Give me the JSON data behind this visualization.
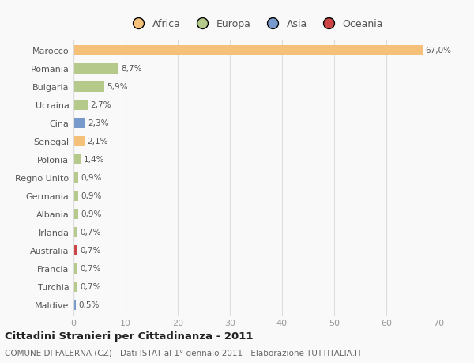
{
  "countries": [
    "Marocco",
    "Romania",
    "Bulgaria",
    "Ucraina",
    "Cina",
    "Senegal",
    "Polonia",
    "Regno Unito",
    "Germania",
    "Albania",
    "Irlanda",
    "Australia",
    "Francia",
    "Turchia",
    "Maldive"
  ],
  "values": [
    67.0,
    8.7,
    5.9,
    2.7,
    2.3,
    2.1,
    1.4,
    0.9,
    0.9,
    0.9,
    0.7,
    0.7,
    0.7,
    0.7,
    0.5
  ],
  "labels": [
    "67,0%",
    "8,7%",
    "5,9%",
    "2,7%",
    "2,3%",
    "2,1%",
    "1,4%",
    "0,9%",
    "0,9%",
    "0,9%",
    "0,7%",
    "0,7%",
    "0,7%",
    "0,7%",
    "0,5%"
  ],
  "continents": [
    "Africa",
    "Europa",
    "Europa",
    "Europa",
    "Asia",
    "Africa",
    "Europa",
    "Europa",
    "Europa",
    "Europa",
    "Europa",
    "Oceania",
    "Europa",
    "Europa",
    "Asia"
  ],
  "colors": {
    "Africa": "#F5C07A",
    "Europa": "#B5C98A",
    "Asia": "#7799CC",
    "Oceania": "#CC4444"
  },
  "legend_items": [
    "Africa",
    "Europa",
    "Asia",
    "Oceania"
  ],
  "legend_colors": [
    "#F5C07A",
    "#B5C98A",
    "#7799CC",
    "#CC4444"
  ],
  "title": "Cittadini Stranieri per Cittadinanza - 2011",
  "subtitle": "COMUNE DI FALERNA (CZ) - Dati ISTAT al 1° gennaio 2011 - Elaborazione TUTTITALIA.IT",
  "xlim": [
    0,
    70
  ],
  "xticks": [
    0,
    10,
    20,
    30,
    40,
    50,
    60,
    70
  ],
  "bg_color": "#f9f9f9",
  "grid_color": "#dddddd",
  "bar_height": 0.55
}
